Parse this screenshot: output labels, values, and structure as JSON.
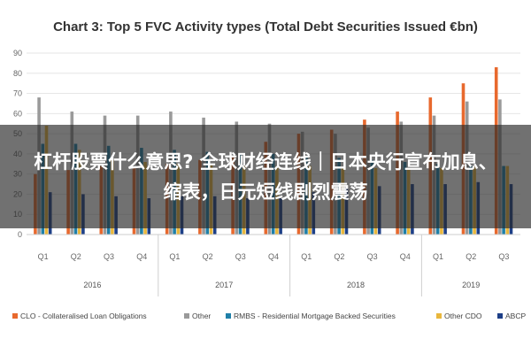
{
  "chart_data": {
    "type": "bar",
    "title": "Chart 3: Top 5 FVC Activity types (Total Debt Securities Issued €bn)",
    "ylim": [
      0,
      90
    ],
    "yticks": [
      "0",
      "10",
      "20",
      "30",
      "40",
      "50",
      "60",
      "70",
      "80",
      "90"
    ],
    "grid": true,
    "legend_position": "bottom",
    "categories": [
      "Q1",
      "Q2",
      "Q3",
      "Q4",
      "Q1",
      "Q2",
      "Q3",
      "Q4",
      "Q1",
      "Q2",
      "Q3",
      "Q4",
      "Q1",
      "Q2",
      "Q3"
    ],
    "years": [
      {
        "label": "2016",
        "span": 4
      },
      {
        "label": "2017",
        "span": 4
      },
      {
        "label": "2018",
        "span": 4
      },
      {
        "label": "2019",
        "span": 3
      }
    ],
    "series": [
      {
        "name": "CLO - Collateralised Loan Obligations",
        "color": "#e8692e",
        "values": [
          30,
          32,
          34,
          33,
          35,
          37,
          39,
          46,
          50,
          52,
          57,
          61,
          68,
          75,
          83
        ]
      },
      {
        "name": "Other",
        "color": "#9a9a9a",
        "values": [
          68,
          61,
          59,
          59,
          61,
          58,
          56,
          55,
          51,
          50,
          53,
          56,
          59,
          66,
          67
        ]
      },
      {
        "name": "RMBS - Residential Mortgage Backed Securities",
        "color": "#1f7fa8",
        "values": [
          45,
          45,
          44,
          43,
          42,
          41,
          40,
          40,
          39,
          38,
          37,
          36,
          35,
          34,
          34
        ]
      },
      {
        "name": "Other CDO",
        "color": "#e9b73d",
        "values": [
          54,
          42,
          37,
          36,
          35,
          35,
          34,
          34,
          34,
          33,
          33,
          33,
          33,
          34,
          34
        ]
      },
      {
        "name": "ABCP",
        "color": "#1d3f87",
        "values": [
          21,
          20,
          19,
          18,
          19,
          19,
          18,
          18,
          21,
          23,
          24,
          25,
          25,
          26,
          25
        ]
      }
    ]
  },
  "overlay": {
    "text": "杠杆股票什么意思? 全球财经连线｜日本央行宣布加息、缩表，日元短线剧烈震荡"
  }
}
